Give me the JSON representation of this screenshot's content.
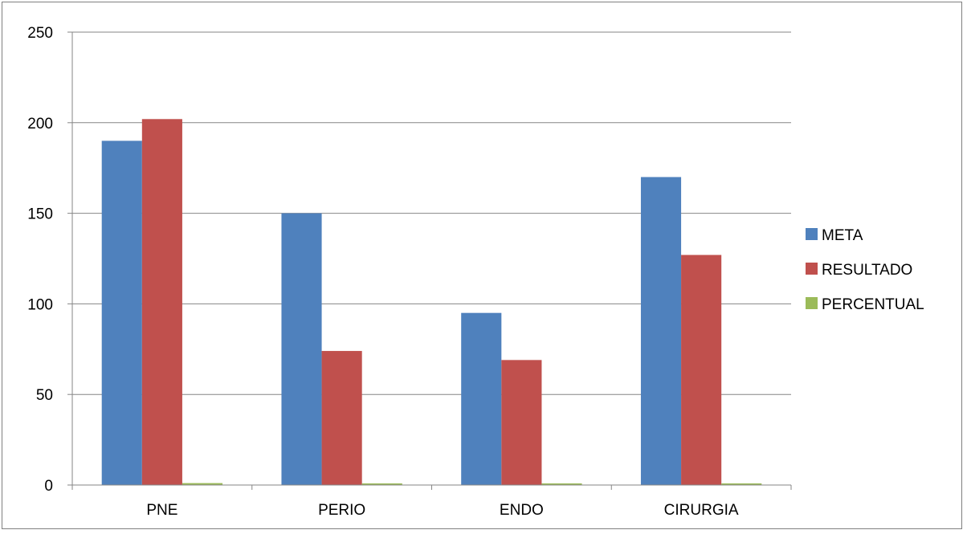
{
  "chart_data": {
    "type": "bar",
    "categories": [
      "PNE",
      "PERIO",
      "ENDO",
      "CIRURGIA"
    ],
    "series": [
      {
        "name": "META",
        "color": "#4F81BD",
        "values": [
          190,
          150,
          95,
          170
        ]
      },
      {
        "name": "RESULTADO",
        "color": "#C0504D",
        "values": [
          202,
          74,
          69,
          127
        ]
      },
      {
        "name": "PERCENTUAL",
        "color": "#9BBB59",
        "values": [
          1.06,
          0.49,
          0.73,
          0.75
        ]
      }
    ],
    "ylim": [
      0,
      250
    ],
    "yticks": [
      0,
      50,
      100,
      150,
      200,
      250
    ],
    "grid": true,
    "legend_position": "right",
    "title": "",
    "xlabel": "",
    "ylabel": ""
  }
}
